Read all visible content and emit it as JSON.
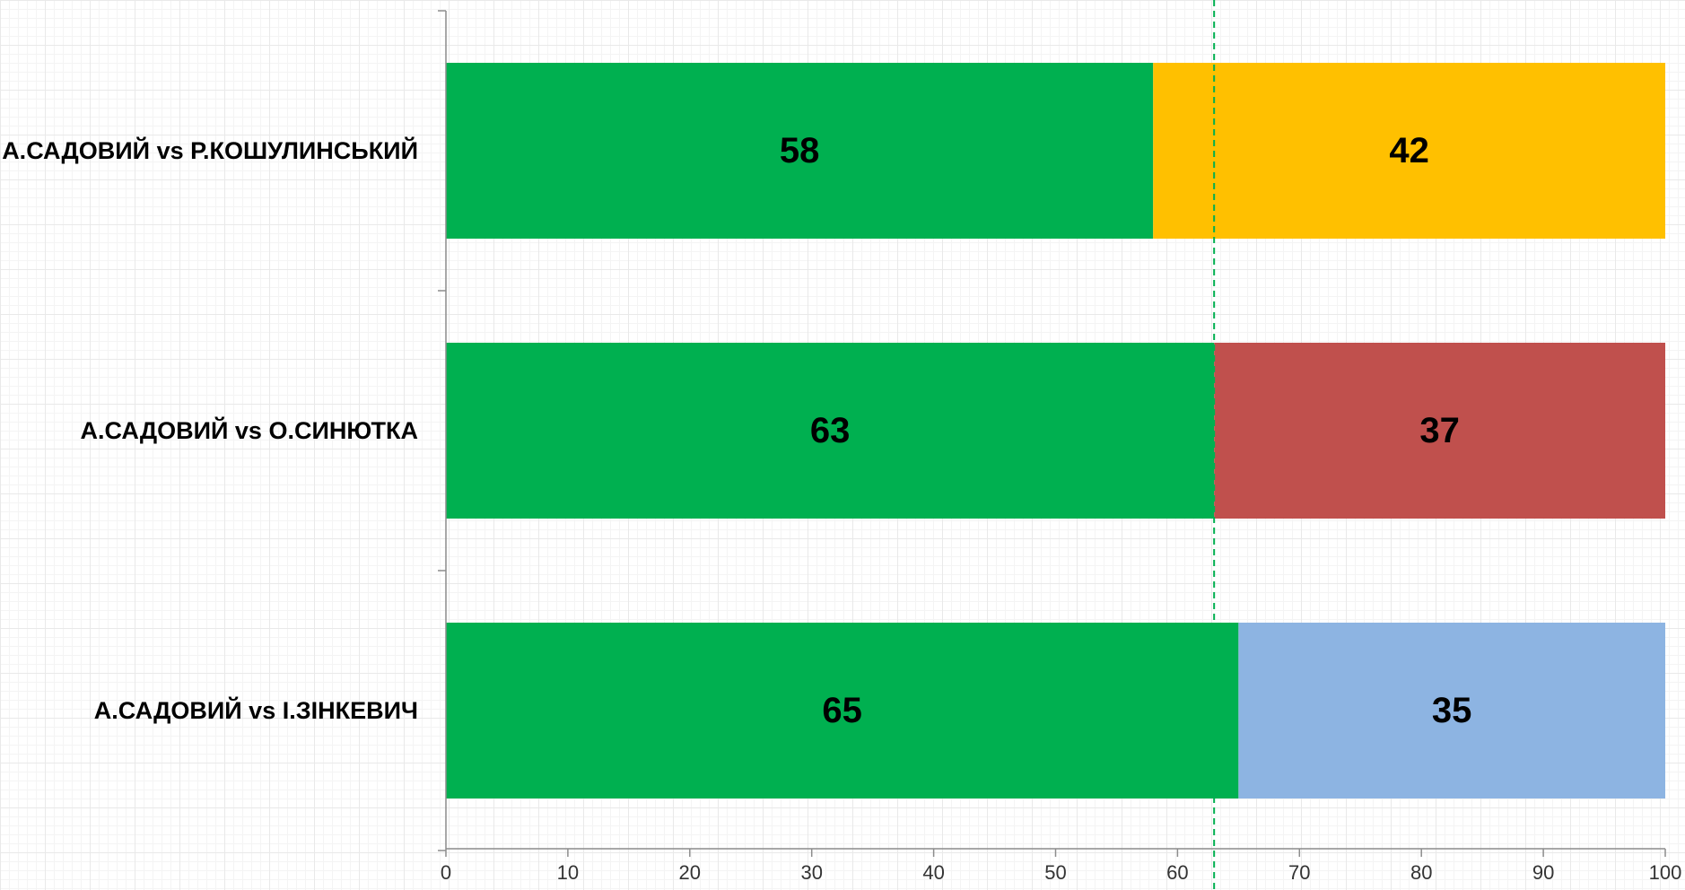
{
  "chart_data": {
    "type": "bar",
    "orientation": "horizontal",
    "stacked": true,
    "categories": [
      "А.САДОВИЙ vs Р.КОШУЛИНСЬКИЙ",
      "А.САДОВИЙ vs О.СИНЮТКА",
      "А.САДОВИЙ vs І.ЗІНКЕВИЧ"
    ],
    "series": [
      {
        "values": [
          58,
          63,
          65
        ],
        "colors": [
          "#00b050",
          "#00b050",
          "#00b050"
        ]
      },
      {
        "values": [
          42,
          37,
          35
        ],
        "colors": [
          "#ffc000",
          "#c0504d",
          "#8db4e2"
        ]
      }
    ],
    "xlim": [
      0,
      100
    ],
    "xticks": [
      0,
      10,
      20,
      30,
      40,
      50,
      60,
      70,
      80,
      90,
      100
    ],
    "reference_line": {
      "value": 63,
      "color": "#00b050",
      "style": "dashed"
    },
    "title": "",
    "xlabel": "",
    "ylabel": "",
    "grid": false,
    "legend": "none"
  }
}
